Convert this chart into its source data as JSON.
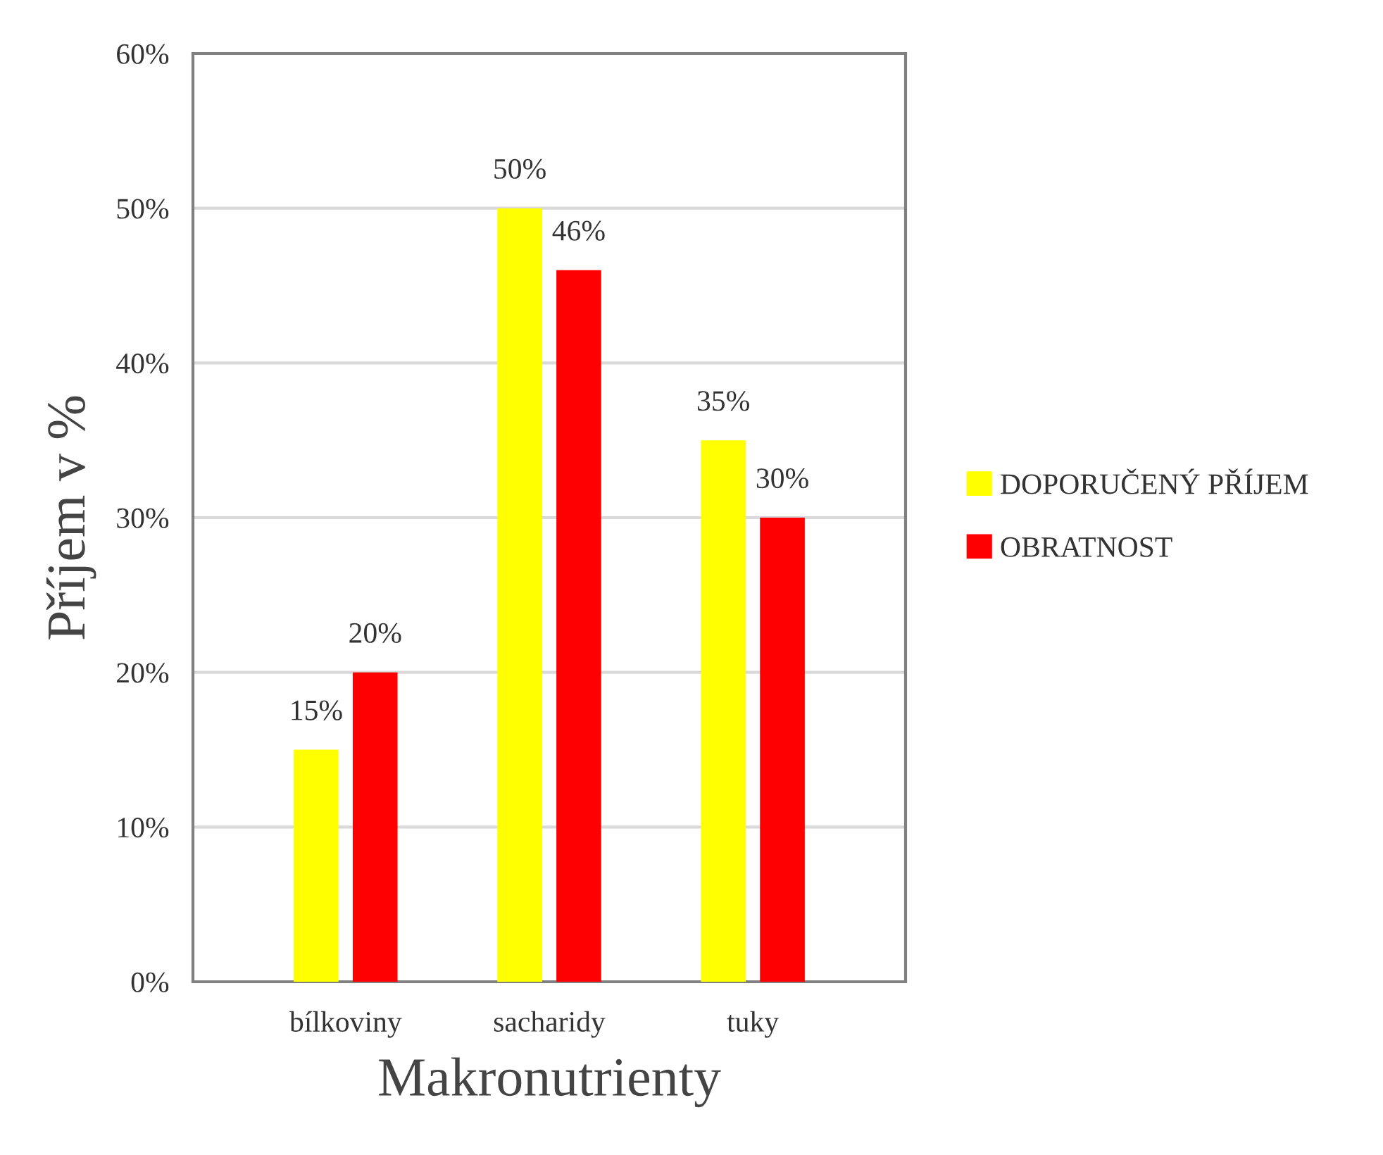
{
  "chart_data": {
    "type": "bar",
    "xlabel": "Makronutrienty",
    "ylabel": "Příjem v %",
    "categories": [
      "bílkoviny",
      "sacharidy",
      "tuky"
    ],
    "series": [
      {
        "name": "DOPORUČENÝ PŘÍJEM",
        "color": "#ffff00",
        "values": [
          15,
          50,
          35
        ],
        "value_labels": [
          "15%",
          "50%",
          "35%"
        ]
      },
      {
        "name": "OBRATNOST",
        "color": "#ff0000",
        "values": [
          20,
          46,
          30
        ],
        "value_labels": [
          "20%",
          "46%",
          "30%"
        ]
      }
    ],
    "ylim": [
      0,
      60
    ],
    "yticks": [
      {
        "value": 0,
        "label": "0%"
      },
      {
        "value": 10,
        "label": "10%"
      },
      {
        "value": 20,
        "label": "20%"
      },
      {
        "value": 30,
        "label": "30%"
      },
      {
        "value": 40,
        "label": "40%"
      },
      {
        "value": 50,
        "label": "50%"
      },
      {
        "value": 60,
        "label": "60%"
      }
    ],
    "grid": "y",
    "legend": "right"
  }
}
